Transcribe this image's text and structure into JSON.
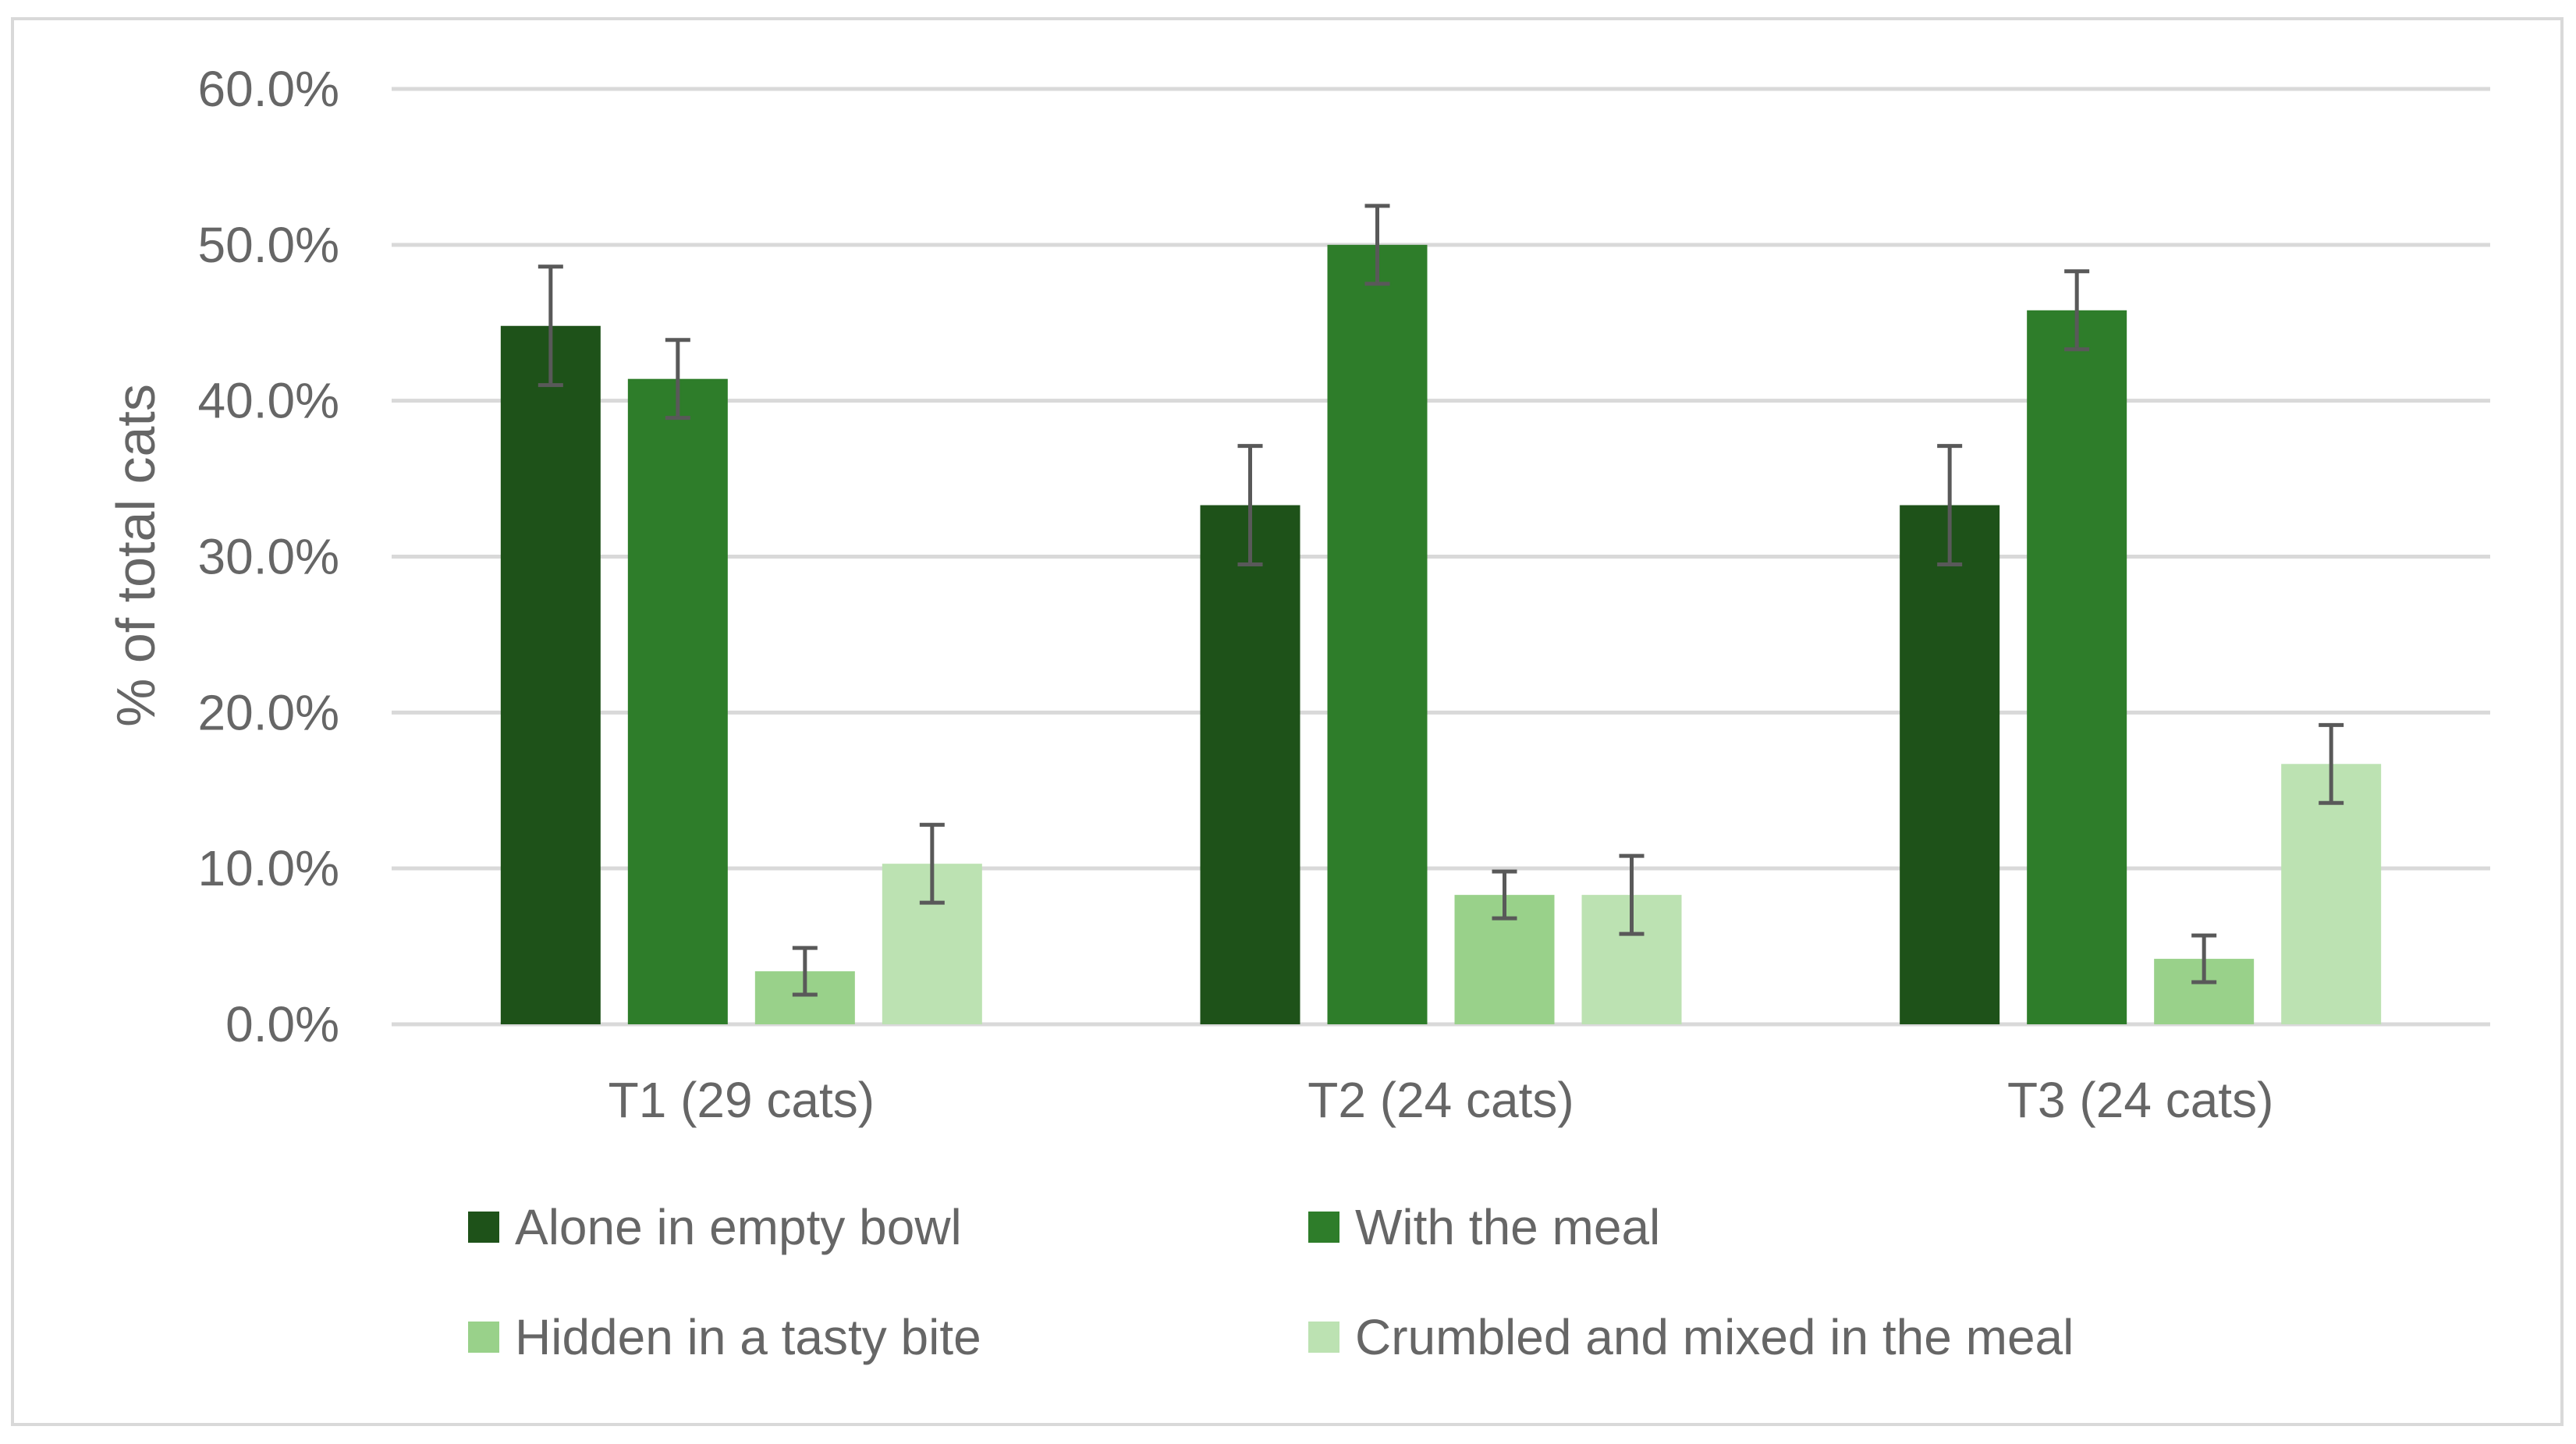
{
  "chart_data": {
    "type": "bar",
    "title": "",
    "xlabel": "",
    "ylabel": "% of total cats",
    "ylim": [
      0,
      60
    ],
    "yticks": [
      "0.0%",
      "10.0%",
      "20.0%",
      "30.0%",
      "40.0%",
      "50.0%",
      "60.0%"
    ],
    "grid": true,
    "legend_position": "bottom",
    "categories": [
      "T1 (29 cats)",
      "T2 (24 cats)",
      "T3 (24 cats)"
    ],
    "series": [
      {
        "name": "Alone in empty bowl",
        "color": "#1e5219",
        "values": [
          44.8,
          33.3,
          33.3
        ],
        "errors": [
          3.8,
          3.8,
          3.8
        ]
      },
      {
        "name": "With the meal",
        "color": "#2e7d2a",
        "values": [
          41.4,
          50.0,
          45.8
        ],
        "errors": [
          2.5,
          2.5,
          2.5
        ]
      },
      {
        "name": "Hidden in a tasty bite",
        "color": "#99d18a",
        "values": [
          3.4,
          8.3,
          4.2
        ],
        "errors": [
          1.5,
          1.5,
          1.5
        ]
      },
      {
        "name": "Crumbled and mixed in the meal",
        "color": "#bce2b2",
        "values": [
          10.3,
          8.3,
          16.7
        ],
        "errors": [
          2.5,
          2.5,
          2.5
        ]
      }
    ]
  }
}
